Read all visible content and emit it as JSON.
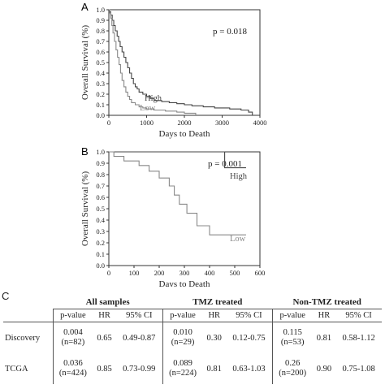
{
  "chart_data": [
    {
      "type": "line",
      "panel": "A",
      "pvalue_text": "p = 0.018",
      "xlabel": "Days to Death",
      "ylabel": "Overall Survival (%)",
      "xlim": [
        0,
        4000
      ],
      "ylim": [
        0,
        1.0
      ],
      "xticks": [
        "0",
        "1000",
        "2000",
        "3000",
        "4000"
      ],
      "yticks": [
        "0.0",
        "0.1",
        "0.2",
        "0.3",
        "0.4",
        "0.5",
        "0.6",
        "0.7",
        "0.8",
        "0.9",
        "1.0"
      ],
      "series": [
        {
          "name": "High",
          "color": "#444444",
          "x": [
            0,
            20,
            50,
            90,
            130,
            170,
            220,
            260,
            300,
            350,
            400,
            450,
            500,
            550,
            600,
            650,
            700,
            750,
            800,
            900,
            1000,
            1100,
            1200,
            1400,
            1600,
            1800,
            2000,
            2200,
            2500,
            2800,
            3200,
            3500,
            3700,
            3800
          ],
          "y": [
            1.0,
            0.98,
            0.95,
            0.9,
            0.85,
            0.8,
            0.75,
            0.7,
            0.65,
            0.6,
            0.55,
            0.5,
            0.45,
            0.4,
            0.35,
            0.3,
            0.27,
            0.25,
            0.22,
            0.2,
            0.18,
            0.16,
            0.14,
            0.13,
            0.12,
            0.11,
            0.1,
            0.09,
            0.08,
            0.07,
            0.06,
            0.05,
            0.03,
            0.0
          ]
        },
        {
          "name": "Low",
          "color": "#888888",
          "x": [
            0,
            20,
            50,
            80,
            110,
            150,
            190,
            230,
            270,
            310,
            350,
            400,
            450,
            500,
            550,
            600,
            700,
            800,
            900,
            1000,
            1200,
            1500,
            1800,
            2000,
            2300
          ],
          "y": [
            1.0,
            0.97,
            0.92,
            0.85,
            0.78,
            0.7,
            0.62,
            0.55,
            0.48,
            0.4,
            0.33,
            0.27,
            0.22,
            0.18,
            0.15,
            0.12,
            0.1,
            0.08,
            0.07,
            0.06,
            0.05,
            0.04,
            0.03,
            0.02,
            0.0
          ]
        }
      ]
    },
    {
      "type": "line",
      "panel": "B",
      "pvalue_text": "p = 0.001",
      "xlabel": "Days to Death",
      "ylabel": "Overall Survival (%)",
      "xlim": [
        0,
        600
      ],
      "ylim": [
        0,
        1.0
      ],
      "xticks": [
        "0",
        "100",
        "200",
        "300",
        "400",
        "500",
        "600"
      ],
      "yticks": [
        "0.0",
        "0.1",
        "0.2",
        "0.3",
        "0.4",
        "0.5",
        "0.6",
        "0.7",
        "0.8",
        "0.9",
        "1.0"
      ],
      "series": [
        {
          "name": "High",
          "color": "#444444",
          "x": [
            0,
            460,
            460,
            545
          ],
          "y": [
            1.0,
            1.0,
            0.86,
            0.86
          ]
        },
        {
          "name": "Low",
          "color": "#888888",
          "x": [
            0,
            20,
            20,
            60,
            60,
            120,
            120,
            160,
            160,
            200,
            200,
            240,
            240,
            260,
            260,
            280,
            280,
            310,
            310,
            350,
            350,
            400,
            400,
            545
          ],
          "y": [
            1.0,
            1.0,
            0.96,
            0.96,
            0.92,
            0.92,
            0.88,
            0.88,
            0.83,
            0.83,
            0.77,
            0.77,
            0.7,
            0.7,
            0.62,
            0.62,
            0.54,
            0.54,
            0.46,
            0.46,
            0.35,
            0.35,
            0.27,
            0.27
          ]
        }
      ]
    },
    {
      "type": "table",
      "panel": "C",
      "groups": [
        "All samples",
        "TMZ treated",
        "Non-TMZ treated"
      ],
      "subheaders": [
        "p-value",
        "HR",
        "95% CI"
      ],
      "rows": [
        {
          "label": "Discovery",
          "cells": [
            {
              "p": "0.004",
              "n": "(n=82)",
              "hr": "0.65",
              "ci": "0.49-0.87"
            },
            {
              "p": "0.010",
              "n": "(n=29)",
              "hr": "0.30",
              "ci": "0.12-0.75"
            },
            {
              "p": "0.115",
              "n": "(n=53)",
              "hr": "0.81",
              "ci": "0.58-1.12"
            }
          ]
        },
        {
          "label": "TCGA",
          "cells": [
            {
              "p": "0.036",
              "n": "(n=424)",
              "hr": "0.85",
              "ci": "0.73-0.99"
            },
            {
              "p": "0.089",
              "n": "(n=224)",
              "hr": "0.81",
              "ci": "0.63-1.03"
            },
            {
              "p": "0.26",
              "n": "(n=200)",
              "hr": "0.90",
              "ci": "0.75-1.08"
            }
          ]
        }
      ]
    }
  ]
}
